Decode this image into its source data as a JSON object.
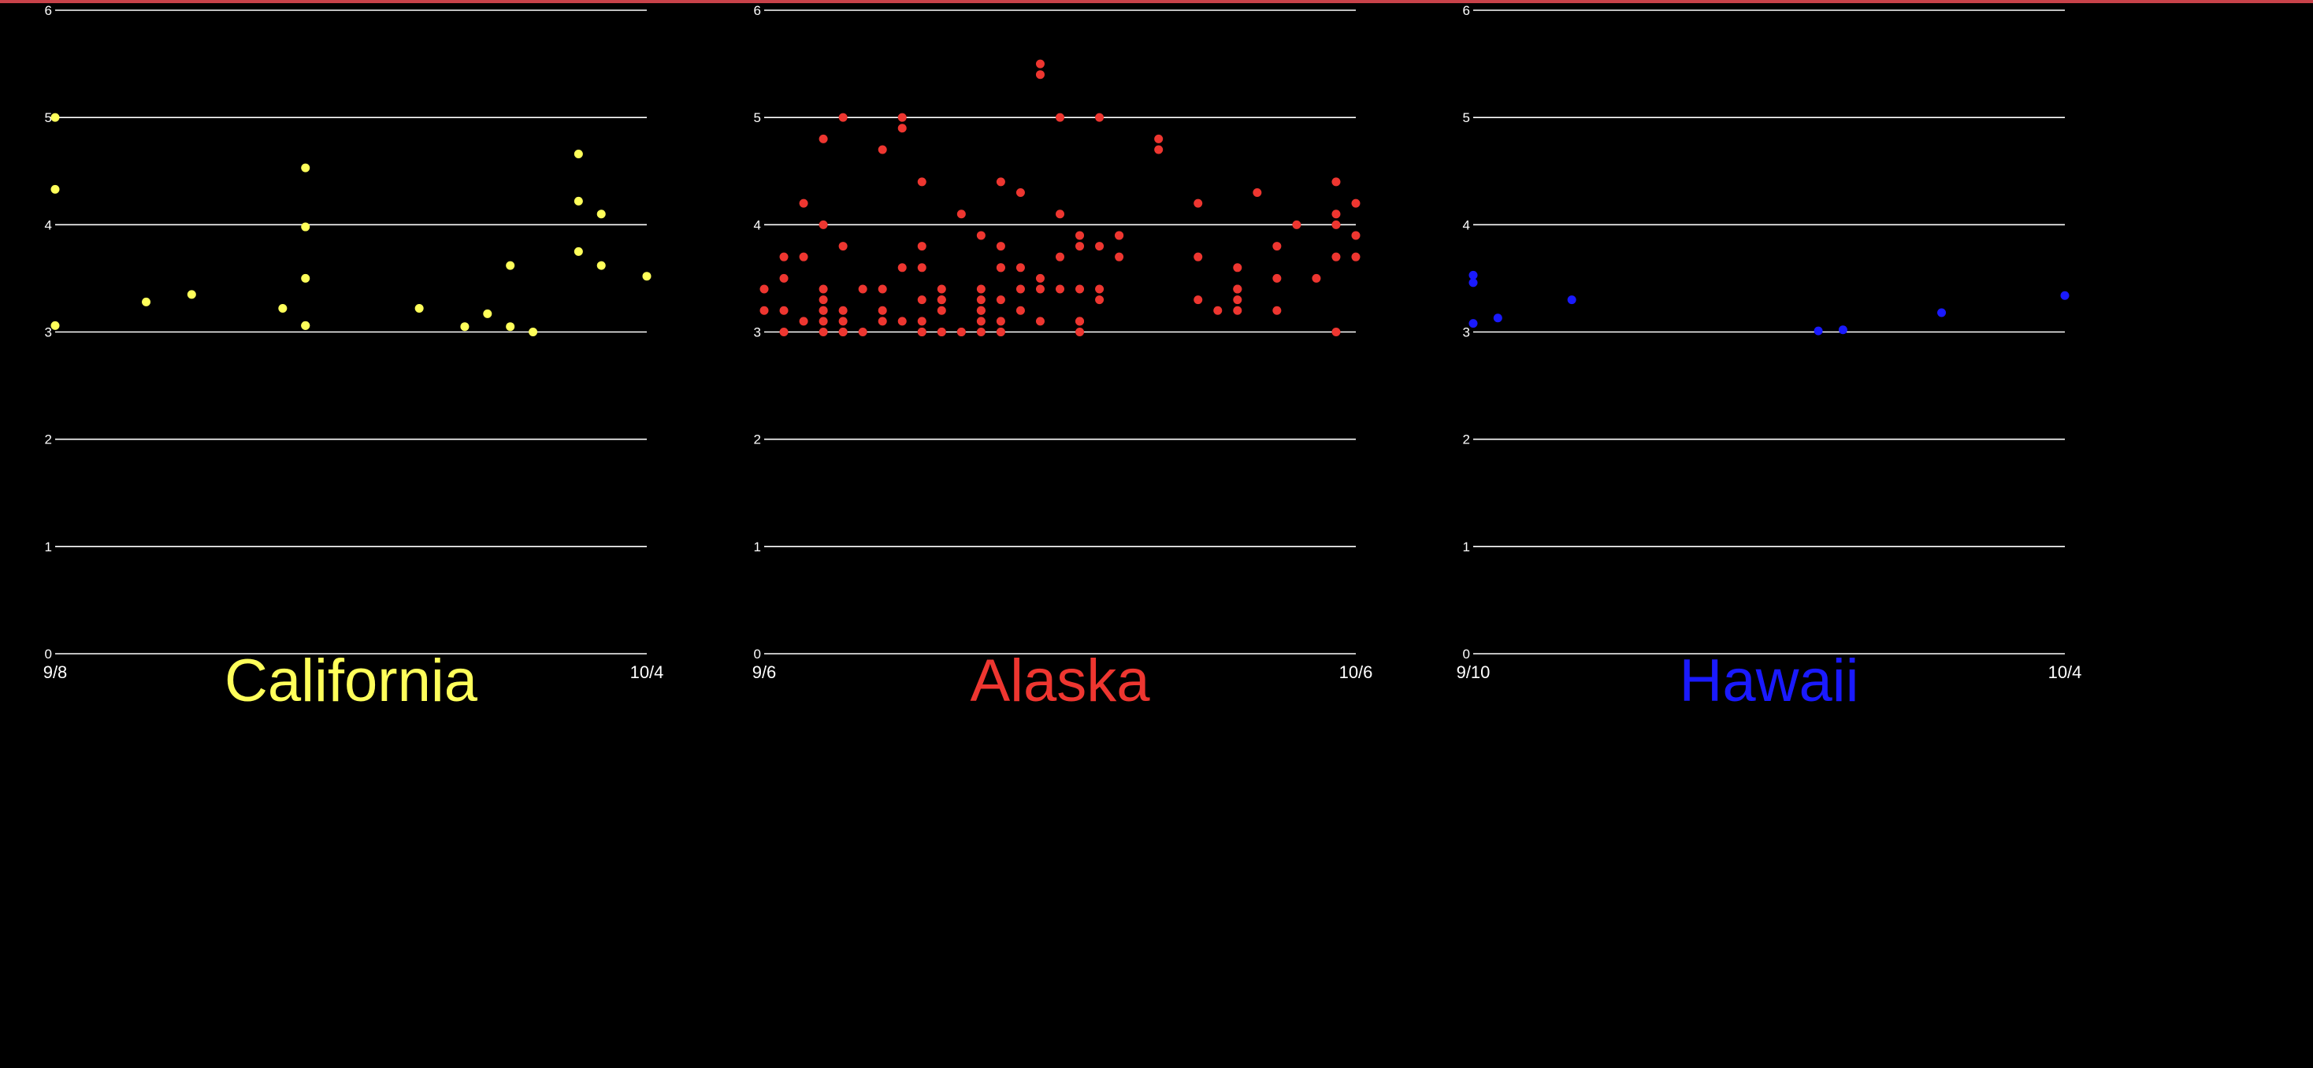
{
  "chart_data": [
    {
      "type": "scatter",
      "title": "California",
      "color": "#ffff5a",
      "x_ticks": [
        "9/8",
        "10/4"
      ],
      "xlim": [
        "9/8",
        "10/4"
      ],
      "ylim": [
        0,
        6
      ],
      "y_ticks": [
        0,
        1,
        2,
        3,
        4,
        5,
        6
      ],
      "grid": true,
      "points": [
        {
          "x": "9/8",
          "y": 5.0
        },
        {
          "x": "9/8",
          "y": 4.33
        },
        {
          "x": "9/8",
          "y": 3.06
        },
        {
          "x": "9/12",
          "y": 3.28
        },
        {
          "x": "9/14",
          "y": 3.35
        },
        {
          "x": "9/18",
          "y": 3.22
        },
        {
          "x": "9/19",
          "y": 4.53
        },
        {
          "x": "9/19",
          "y": 3.98
        },
        {
          "x": "9/19",
          "y": 3.5
        },
        {
          "x": "9/19",
          "y": 3.06
        },
        {
          "x": "9/19",
          "y": 3.06
        },
        {
          "x": "9/24",
          "y": 3.22
        },
        {
          "x": "9/26",
          "y": 3.05
        },
        {
          "x": "9/27",
          "y": 3.17
        },
        {
          "x": "9/28",
          "y": 3.05
        },
        {
          "x": "9/28",
          "y": 3.62
        },
        {
          "x": "9/29",
          "y": 3.0
        },
        {
          "x": "10/1",
          "y": 4.66
        },
        {
          "x": "10/1",
          "y": 4.22
        },
        {
          "x": "10/1",
          "y": 3.75
        },
        {
          "x": "10/2",
          "y": 4.1
        },
        {
          "x": "10/2",
          "y": 3.62
        },
        {
          "x": "10/4",
          "y": 3.52
        }
      ]
    },
    {
      "type": "scatter",
      "title": "Alaska",
      "color": "#ee3630",
      "x_ticks": [
        "9/6",
        "10/6"
      ],
      "xlim": [
        "9/6",
        "10/6"
      ],
      "ylim": [
        0,
        6
      ],
      "y_ticks": [
        0,
        1,
        2,
        3,
        4,
        5,
        6
      ],
      "grid": true,
      "points": [
        {
          "x": "9/6",
          "y": 3.4
        },
        {
          "x": "9/6",
          "y": 3.2
        },
        {
          "x": "9/7",
          "y": 3.7
        },
        {
          "x": "9/7",
          "y": 3.2
        },
        {
          "x": "9/7",
          "y": 3.0
        },
        {
          "x": "9/7",
          "y": 3.5
        },
        {
          "x": "9/8",
          "y": 4.2
        },
        {
          "x": "9/8",
          "y": 3.7
        },
        {
          "x": "9/8",
          "y": 3.1
        },
        {
          "x": "9/9",
          "y": 3.3
        },
        {
          "x": "9/9",
          "y": 3.2
        },
        {
          "x": "9/9",
          "y": 4.8
        },
        {
          "x": "9/9",
          "y": 3.2
        },
        {
          "x": "9/9",
          "y": 3.1
        },
        {
          "x": "9/9",
          "y": 3.0
        },
        {
          "x": "9/9",
          "y": 4.0
        },
        {
          "x": "9/9",
          "y": 3.4
        },
        {
          "x": "9/10",
          "y": 3.2
        },
        {
          "x": "9/10",
          "y": 3.0
        },
        {
          "x": "9/10",
          "y": 3.0
        },
        {
          "x": "9/10",
          "y": 3.1
        },
        {
          "x": "9/10",
          "y": 3.8
        },
        {
          "x": "9/10",
          "y": 5.0
        },
        {
          "x": "9/11",
          "y": 3.4
        },
        {
          "x": "9/11",
          "y": 3.0
        },
        {
          "x": "9/12",
          "y": 4.7
        },
        {
          "x": "9/12",
          "y": 3.4
        },
        {
          "x": "9/12",
          "y": 3.2
        },
        {
          "x": "9/12",
          "y": 3.1
        },
        {
          "x": "9/13",
          "y": 3.6
        },
        {
          "x": "9/13",
          "y": 3.1
        },
        {
          "x": "9/13",
          "y": 5.0
        },
        {
          "x": "9/13",
          "y": 4.9
        },
        {
          "x": "9/14",
          "y": 3.0
        },
        {
          "x": "9/14",
          "y": 3.1
        },
        {
          "x": "9/14",
          "y": 3.6
        },
        {
          "x": "9/14",
          "y": 3.3
        },
        {
          "x": "9/14",
          "y": 3.0
        },
        {
          "x": "9/14",
          "y": 4.4
        },
        {
          "x": "9/14",
          "y": 3.8
        },
        {
          "x": "9/15",
          "y": 3.4
        },
        {
          "x": "9/15",
          "y": 3.0
        },
        {
          "x": "9/15",
          "y": 3.3
        },
        {
          "x": "9/15",
          "y": 3.3
        },
        {
          "x": "9/15",
          "y": 3.0
        },
        {
          "x": "9/15",
          "y": 3.2
        },
        {
          "x": "9/16",
          "y": 3.0
        },
        {
          "x": "9/16",
          "y": 3.0
        },
        {
          "x": "9/16",
          "y": 4.1
        },
        {
          "x": "9/17",
          "y": 3.0
        },
        {
          "x": "9/17",
          "y": 3.2
        },
        {
          "x": "9/17",
          "y": 3.1
        },
        {
          "x": "9/17",
          "y": 3.9
        },
        {
          "x": "9/17",
          "y": 3.4
        },
        {
          "x": "9/17",
          "y": 3.2
        },
        {
          "x": "9/17",
          "y": 3.3
        },
        {
          "x": "9/18",
          "y": 3.0
        },
        {
          "x": "9/18",
          "y": 3.1
        },
        {
          "x": "9/18",
          "y": 3.6
        },
        {
          "x": "9/18",
          "y": 3.6
        },
        {
          "x": "9/18",
          "y": 3.8
        },
        {
          "x": "9/18",
          "y": 4.4
        },
        {
          "x": "9/18",
          "y": 3.3
        },
        {
          "x": "9/18",
          "y": 3.0
        },
        {
          "x": "9/19",
          "y": 3.2
        },
        {
          "x": "9/19",
          "y": 3.6
        },
        {
          "x": "9/19",
          "y": 3.4
        },
        {
          "x": "9/19",
          "y": 4.3
        },
        {
          "x": "9/20",
          "y": 3.4
        },
        {
          "x": "9/20",
          "y": 5.5
        },
        {
          "x": "9/20",
          "y": 5.4
        },
        {
          "x": "9/20",
          "y": 3.1
        },
        {
          "x": "9/20",
          "y": 3.5
        },
        {
          "x": "9/21",
          "y": 3.4
        },
        {
          "x": "9/21",
          "y": 3.7
        },
        {
          "x": "9/21",
          "y": 5.0
        },
        {
          "x": "9/21",
          "y": 4.1
        },
        {
          "x": "9/22",
          "y": 3.8
        },
        {
          "x": "9/22",
          "y": 3.4
        },
        {
          "x": "9/22",
          "y": 3.0
        },
        {
          "x": "9/22",
          "y": 3.1
        },
        {
          "x": "9/22",
          "y": 3.1
        },
        {
          "x": "9/22",
          "y": 3.9
        },
        {
          "x": "9/23",
          "y": 3.8
        },
        {
          "x": "9/23",
          "y": 3.4
        },
        {
          "x": "9/23",
          "y": 3.3
        },
        {
          "x": "9/23",
          "y": 5.0
        },
        {
          "x": "9/24",
          "y": 3.9
        },
        {
          "x": "9/24",
          "y": 3.9
        },
        {
          "x": "9/24",
          "y": 3.7
        },
        {
          "x": "9/26",
          "y": 4.7
        },
        {
          "x": "9/26",
          "y": 4.8
        },
        {
          "x": "9/28",
          "y": 3.3
        },
        {
          "x": "9/28",
          "y": 3.7
        },
        {
          "x": "9/28",
          "y": 4.2
        },
        {
          "x": "9/29",
          "y": 3.2
        },
        {
          "x": "9/30",
          "y": 3.4
        },
        {
          "x": "9/30",
          "y": 3.6
        },
        {
          "x": "9/30",
          "y": 3.4
        },
        {
          "x": "9/30",
          "y": 3.3
        },
        {
          "x": "9/30",
          "y": 3.2
        },
        {
          "x": "10/1",
          "y": 4.3
        },
        {
          "x": "10/2",
          "y": 3.2
        },
        {
          "x": "10/2",
          "y": 3.8
        },
        {
          "x": "10/2",
          "y": 3.5
        },
        {
          "x": "10/3",
          "y": 4.0
        },
        {
          "x": "10/4",
          "y": 3.5
        },
        {
          "x": "10/5",
          "y": 4.0
        },
        {
          "x": "10/5",
          "y": 3.0
        },
        {
          "x": "10/5",
          "y": 3.7
        },
        {
          "x": "10/5",
          "y": 4.4
        },
        {
          "x": "10/5",
          "y": 4.1
        },
        {
          "x": "10/6",
          "y": 4.2
        },
        {
          "x": "10/6",
          "y": 3.9
        },
        {
          "x": "10/6",
          "y": 3.7
        }
      ]
    },
    {
      "type": "scatter",
      "title": "Hawaii",
      "color": "#1a1aff",
      "x_ticks": [
        "9/10",
        "10/4"
      ],
      "xlim": [
        "9/10",
        "10/4"
      ],
      "ylim": [
        0,
        6
      ],
      "y_ticks": [
        0,
        1,
        2,
        3,
        4,
        5,
        6
      ],
      "grid": true,
      "points": [
        {
          "x": "9/10",
          "y": 3.53
        },
        {
          "x": "9/10",
          "y": 3.46
        },
        {
          "x": "9/10",
          "y": 3.08
        },
        {
          "x": "9/11",
          "y": 3.13
        },
        {
          "x": "9/14",
          "y": 3.3
        },
        {
          "x": "9/24",
          "y": 3.01
        },
        {
          "x": "9/25",
          "y": 3.02
        },
        {
          "x": "9/29",
          "y": 3.18
        },
        {
          "x": "10/4",
          "y": 3.34
        }
      ]
    }
  ]
}
